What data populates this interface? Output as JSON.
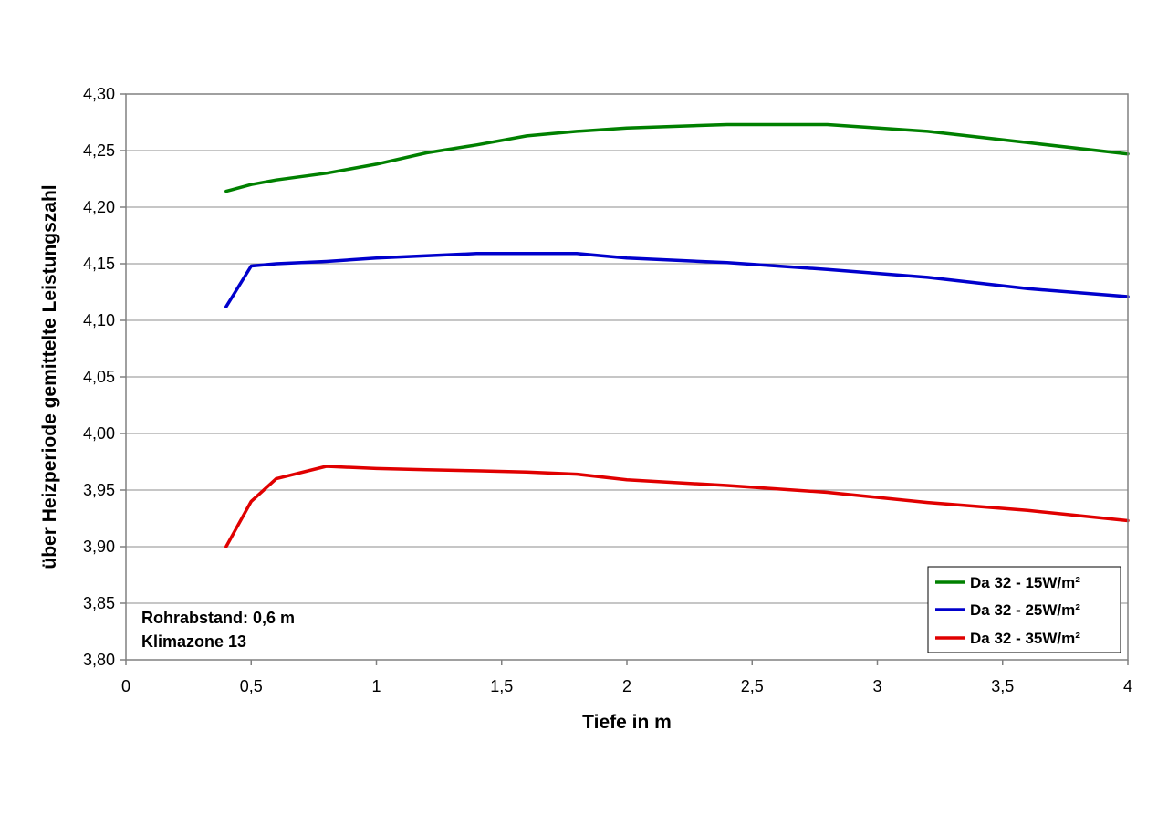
{
  "chart_data": {
    "type": "line",
    "xlabel": "Tiefe in m",
    "ylabel": "über Heizperiode gemittelte Leistungszahl",
    "xlim": [
      0,
      4
    ],
    "ylim": [
      3.8,
      4.3
    ],
    "x_ticks": [
      "0",
      "0,5",
      "1",
      "1,5",
      "2",
      "2,5",
      "3",
      "3,5",
      "4"
    ],
    "x_tick_values": [
      0,
      0.5,
      1,
      1.5,
      2,
      2.5,
      3,
      3.5,
      4
    ],
    "y_ticks": [
      "3,80",
      "3,85",
      "3,90",
      "3,95",
      "4,00",
      "4,05",
      "4,10",
      "4,15",
      "4,20",
      "4,25",
      "4,30"
    ],
    "y_tick_values": [
      3.8,
      3.85,
      3.9,
      3.95,
      4.0,
      4.05,
      4.1,
      4.15,
      4.2,
      4.25,
      4.3
    ],
    "grid": "horizontal",
    "legend_position": "bottom-right",
    "series": [
      {
        "name": "Da 32 - 15W/m²",
        "color": "#008000",
        "x": [
          0.4,
          0.5,
          0.6,
          0.8,
          1.0,
          1.2,
          1.4,
          1.6,
          1.8,
          2.0,
          2.4,
          2.8,
          3.2,
          3.6,
          4.0
        ],
        "values": [
          4.214,
          4.22,
          4.224,
          4.23,
          4.238,
          4.248,
          4.255,
          4.263,
          4.267,
          4.27,
          4.273,
          4.273,
          4.267,
          4.257,
          4.247
        ]
      },
      {
        "name": "Da 32 - 25W/m²",
        "color": "#0000cc",
        "x": [
          0.4,
          0.5,
          0.6,
          0.8,
          1.0,
          1.2,
          1.4,
          1.6,
          1.8,
          2.0,
          2.4,
          2.8,
          3.2,
          3.6,
          4.0
        ],
        "values": [
          4.112,
          4.148,
          4.15,
          4.152,
          4.155,
          4.157,
          4.159,
          4.159,
          4.159,
          4.155,
          4.151,
          4.145,
          4.138,
          4.128,
          4.121
        ]
      },
      {
        "name": "Da 32 - 35W/m²",
        "color": "#e00000",
        "x": [
          0.4,
          0.5,
          0.6,
          0.8,
          1.0,
          1.2,
          1.4,
          1.6,
          1.8,
          2.0,
          2.4,
          2.8,
          3.2,
          3.6,
          4.0
        ],
        "values": [
          3.9,
          3.94,
          3.96,
          3.971,
          3.969,
          3.968,
          3.967,
          3.966,
          3.964,
          3.959,
          3.954,
          3.948,
          3.939,
          3.932,
          3.923
        ]
      }
    ],
    "annotations": [
      "Rohrabstand: 0,6 m",
      "Klimazone 13"
    ]
  }
}
